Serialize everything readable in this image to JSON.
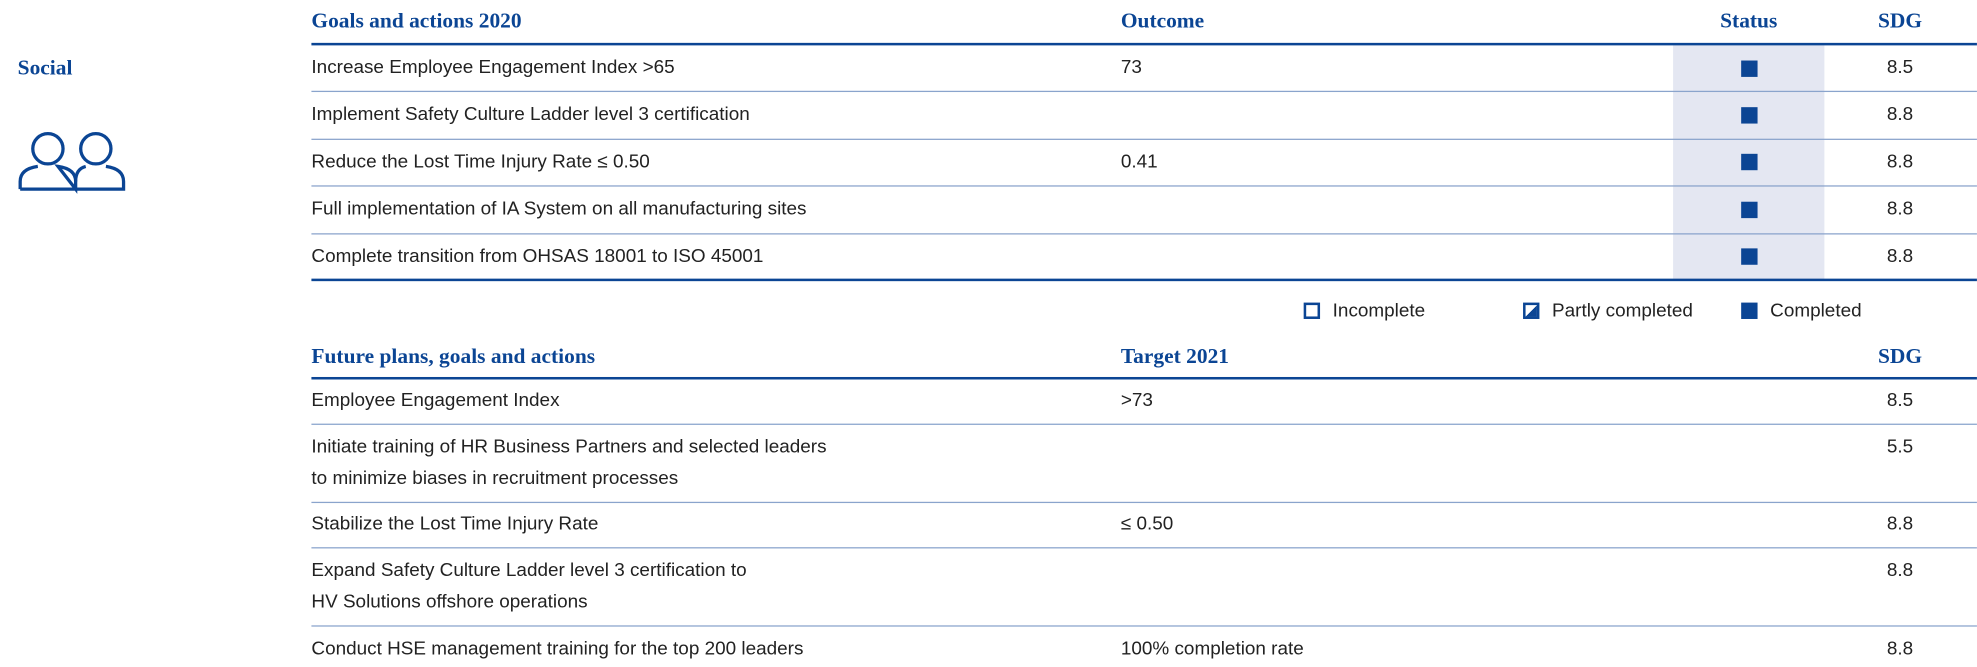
{
  "section": "Social",
  "goals": {
    "headers": [
      "Goals and actions 2020",
      "Outcome",
      "Status",
      "SDG"
    ],
    "rows": [
      {
        "goal": "Increase Employee Engagement Index >65",
        "outcome": "73",
        "status": "Completed",
        "sdg": "8.5"
      },
      {
        "goal": "Implement Safety Culture Ladder level 3 certification",
        "status": "Completed",
        "sdg": "8.8"
      },
      {
        "goal": "Reduce the Lost Time Injury Rate ≤ 0.50",
        "outcome": "0.41",
        "status": "Completed",
        "sdg": "8.8"
      },
      {
        "goal": "Full implementation of IA System on all manufacturing sites",
        "status": "Completed",
        "sdg": "8.8"
      },
      {
        "goal": "Complete transition from OHSAS 18001 to ISO 45001",
        "status": "Completed",
        "sdg": "8.8"
      }
    ]
  },
  "legend": [
    "Incomplete",
    "Partly completed",
    "Completed"
  ],
  "plans": {
    "headers": [
      "Future plans, goals and actions",
      "Target 2021",
      "SDG"
    ],
    "rows": [
      {
        "goal": [
          "Employee Engagement Index"
        ],
        "target": ">73",
        "sdg": "8.5"
      },
      {
        "goal": [
          "Initiate training of HR Business Partners and selected leaders",
          "to minimize biases in recruitment processes"
        ],
        "sdg": "5.5"
      },
      {
        "goal": [
          "Stabilize the Lost Time Injury Rate"
        ],
        "target": "≤ 0.50",
        "sdg": "8.8"
      },
      {
        "goal": [
          "Expand Safety Culture Ladder level 3 certification to",
          "HV Solutions offshore operations"
        ],
        "sdg": "8.8"
      },
      {
        "goal": [
          "Conduct HSE management training for the top 200 leaders"
        ],
        "target": "100% completion rate",
        "sdg": "8.8"
      }
    ]
  }
}
